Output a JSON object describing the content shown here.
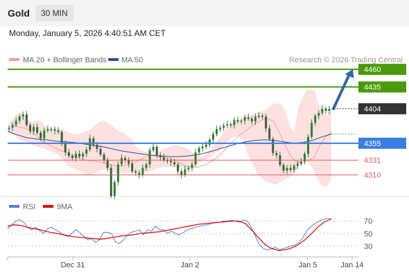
{
  "header": {
    "title": "Gold",
    "timeframe": "30 MIN"
  },
  "timestamp": "Monday, January 5, 2026 4:40:51 AM CET",
  "legend": {
    "bollinger": "MA 20 + Bollinger Bands",
    "ma50": "MA 50",
    "credit": "Research © 2026 Trading Central",
    "rsi": "RSI",
    "rsi_ma": "9MA"
  },
  "colors": {
    "resistance": "#4a9a0c",
    "support": "#3a7ee0",
    "minor_support": "#e05a5a",
    "current": "#333333",
    "bollinger_fill": "#fde1e1",
    "ma20": "#f1a0a0",
    "ma50": "#2b4e8c",
    "arrow": "#2f67a6",
    "rsi": "#4f7fdd",
    "rsi_ma": "#e00000",
    "candle": "#2e7d32"
  },
  "chart_data": [
    {
      "type": "candlestick",
      "y_range": [
        4283,
        4470
      ],
      "x_ticks": [
        "Dec 31",
        "Jan 2",
        "Jan 5",
        "Jan 14"
      ],
      "levels": [
        {
          "label": "4460",
          "value": 4460,
          "kind": "resistance"
        },
        {
          "label": "4435",
          "value": 4435,
          "kind": "resistance"
        },
        {
          "label": "4404",
          "value": 4404,
          "kind": "current"
        },
        {
          "label": "4355",
          "value": 4355,
          "kind": "support"
        },
        {
          "label": "4331",
          "value": 4331,
          "kind": "minor"
        },
        {
          "label": "4310",
          "value": 4310,
          "kind": "minor"
        }
      ],
      "close_path": [
        4377,
        4381,
        4387,
        4393,
        4396,
        4381,
        4372,
        4378,
        4370,
        4362,
        4373,
        4375,
        4375,
        4373,
        4371,
        4355,
        4342,
        4337,
        4334,
        4340,
        4336,
        4340,
        4346,
        4362,
        4353,
        4347,
        4339,
        4331,
        4320,
        4280,
        4300,
        4325,
        4334,
        4331,
        4326,
        4315,
        4313,
        4310,
        4320,
        4325,
        4345,
        4350,
        4338,
        4335,
        4331,
        4330,
        4328,
        4325,
        4315,
        4310,
        4318,
        4320,
        4325,
        4342,
        4348,
        4350,
        4353,
        4360,
        4368,
        4375,
        4377,
        4380,
        4382,
        4381,
        4388,
        4386,
        4387,
        4392,
        4390,
        4386,
        4393,
        4394,
        4393,
        4376,
        4361,
        4341,
        4338,
        4324,
        4316,
        4320,
        4317,
        4323,
        4326,
        4329,
        4340,
        4364,
        4384,
        4394,
        4398,
        4404,
        4401,
        4404
      ],
      "bollinger_upper": [
        4380,
        4388,
        4395,
        4400,
        4395,
        4388,
        4385,
        4387,
        4386,
        4380,
        4375,
        4373,
        4375,
        4374,
        4372,
        4370,
        4368,
        4368,
        4370,
        4372,
        4375,
        4380,
        4385,
        4388,
        4385,
        4380,
        4375,
        4372,
        4370,
        4366,
        4360,
        4350,
        4345,
        4343,
        4342,
        4340,
        4342,
        4345,
        4348,
        4350,
        4352,
        4352,
        4350,
        4348,
        4345,
        4340,
        4337,
        4336,
        4340,
        4348,
        4355,
        4362,
        4370,
        4378,
        4382,
        4386,
        4388,
        4392,
        4394,
        4396,
        4398,
        4400,
        4402,
        4408,
        4412,
        4412,
        4410,
        4400,
        4380,
        4370,
        4405,
        4420,
        4430,
        4431,
        4430,
        4410,
        4400,
        4395,
        4400
      ],
      "bollinger_lower": [
        4370,
        4365,
        4360,
        4358,
        4355,
        4352,
        4350,
        4348,
        4345,
        4342,
        4340,
        4335,
        4325,
        4320,
        4318,
        4315,
        4312,
        4310,
        4312,
        4315,
        4318,
        4316,
        4314,
        4312,
        4312,
        4313,
        4313,
        4313,
        4314,
        4314,
        4315,
        4318,
        4320,
        4322,
        4322,
        4320,
        4320,
        4320,
        4318,
        4320,
        4324,
        4328,
        4332,
        4336,
        4340,
        4345,
        4352,
        4360,
        4364,
        4365,
        4360,
        4340,
        4325,
        4312,
        4305,
        4300,
        4298,
        4296,
        4300,
        4304,
        4306,
        4312,
        4322,
        4335,
        4330,
        4318,
        4304,
        4294,
        4293,
        4303
      ],
      "ma20": [
        4380,
        4378,
        4376,
        4372,
        4365,
        4358,
        4353,
        4349,
        4345,
        4342,
        4338,
        4335,
        4332,
        4330,
        4330,
        4328,
        4326,
        4324,
        4322,
        4323,
        4325,
        4328,
        4332,
        4336,
        4338,
        4337,
        4335,
        4333,
        4330,
        4326,
        4322,
        4321,
        4321,
        4324,
        4328,
        4334,
        4341,
        4350,
        4358,
        4366,
        4372,
        4378,
        4384,
        4388,
        4390,
        4386,
        4370,
        4352,
        4336,
        4328,
        4328,
        4330,
        4335,
        4352,
        4364,
        4372
      ],
      "ma50": [
        4372,
        4367,
        4363,
        4361,
        4360,
        4358,
        4357,
        4356,
        4354,
        4352,
        4350,
        4347,
        4344,
        4342,
        4340,
        4338,
        4337,
        4336,
        4336,
        4337,
        4339,
        4342,
        4346,
        4350,
        4354,
        4357,
        4359,
        4360,
        4359,
        4357,
        4355,
        4356,
        4359,
        4364,
        4368
      ],
      "forecast_arrow": {
        "from": 4404,
        "to": 4460
      }
    },
    {
      "type": "line",
      "title": "RSI",
      "y_ticks": [
        70,
        50,
        30
      ],
      "y_range": [
        16,
        78
      ],
      "series": [
        {
          "name": "RSI",
          "values": [
            58,
            64,
            70,
            72,
            68,
            60,
            56,
            60,
            55,
            50,
            58,
            60,
            56,
            52,
            48,
            45,
            50,
            56,
            52,
            46,
            40,
            42,
            36,
            40,
            52,
            52,
            50,
            36,
            34,
            40,
            48,
            52,
            54,
            56,
            48,
            56,
            54,
            62,
            56,
            56,
            50,
            54,
            50,
            48,
            52,
            56,
            58,
            60,
            62,
            63,
            64,
            66,
            68,
            68,
            70,
            70,
            71,
            70,
            68,
            72,
            70,
            60,
            45,
            32,
            26,
            24,
            26,
            28,
            24,
            26,
            28,
            30,
            32,
            36,
            45,
            56,
            62,
            66,
            70,
            73,
            74,
            74
          ]
        },
        {
          "name": "9MA",
          "values": [
            62,
            64,
            63,
            60,
            58,
            56,
            53,
            51,
            49,
            47,
            45,
            44,
            43,
            42,
            41,
            42,
            44,
            46,
            47,
            48,
            50,
            51,
            52,
            53,
            55,
            57,
            59,
            61,
            63,
            65,
            66,
            67,
            68,
            69,
            70,
            70,
            66,
            55,
            43,
            32,
            26,
            23,
            24,
            27,
            32,
            40,
            50,
            61,
            69,
            73
          ]
        }
      ]
    }
  ]
}
